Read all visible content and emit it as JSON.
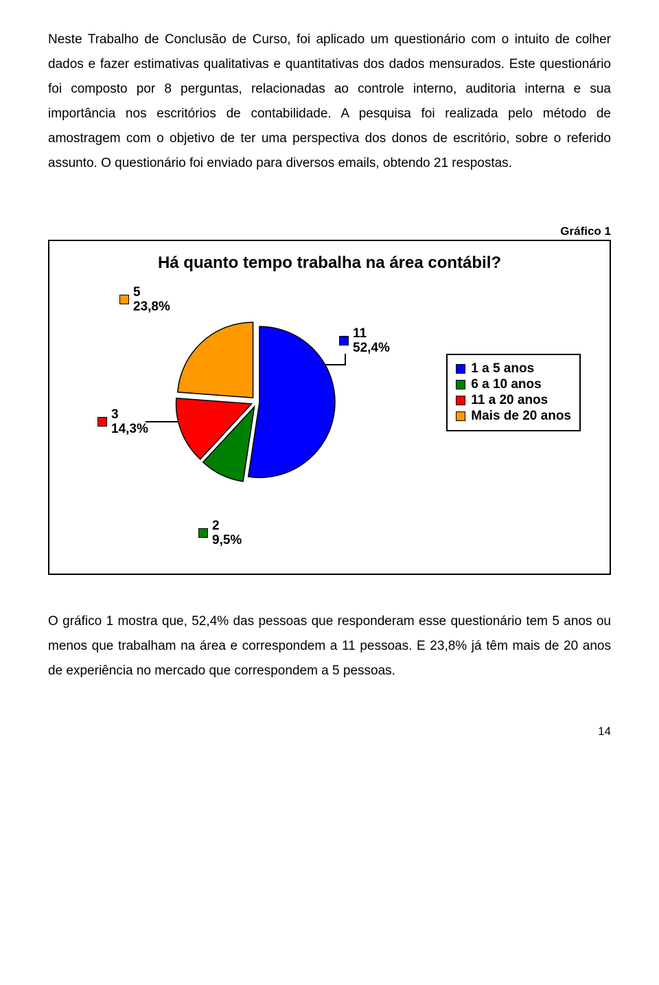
{
  "paragraph_top": "Neste Trabalho de Conclusão de Curso, foi aplicado um questionário com o intuito de colher dados e fazer estimativas qualitativas e quantitativas dos dados mensurados. Este questionário foi composto por 8 perguntas, relacionadas ao controle interno, auditoria interna e sua importância nos escritórios de contabilidade. A pesquisa foi realizada pelo método de amostragem com o objetivo de ter uma perspectiva dos donos de escritório, sobre o referido assunto. O questionário foi enviado para diversos emails, obtendo 21 respostas.",
  "chart": {
    "caption": "Gráfico 1",
    "title": "Há quanto tempo trabalha na área contábil?",
    "type": "pie",
    "background_color": "#ffffff",
    "border_color": "#000000",
    "title_fontsize": 24,
    "label_fontsize": 19,
    "slice_border_color": "#000000",
    "slice_border_width": 1.5,
    "total": 21,
    "slices": [
      {
        "id": "1-5",
        "label": "1 a 5 anos",
        "count": 11,
        "percent": "52,4%",
        "color": "#0000ff",
        "explode": 4
      },
      {
        "id": "6-10",
        "label": "6 a 10 anos",
        "count": 2,
        "percent": "9,5%",
        "color": "#008000",
        "explode": 8
      },
      {
        "id": "11-20",
        "label": "11 a 20 anos",
        "count": 3,
        "percent": "14,3%",
        "color": "#ff0000",
        "explode": 8
      },
      {
        "id": "20+",
        "label": "Mais de 20 anos",
        "count": 5,
        "percent": "23,8%",
        "color": "#ff9900",
        "explode": 8
      }
    ],
    "start_angle_deg": -90,
    "radius": 110,
    "callouts": {
      "c0": {
        "count": "11",
        "pct": "52,4%"
      },
      "c1": {
        "count": "2",
        "pct": "9,5%"
      },
      "c2": {
        "count": "3",
        "pct": "14,3%"
      },
      "c3": {
        "count": "5",
        "pct": "23,8%"
      }
    },
    "legend": {
      "items": [
        {
          "label": "1 a 5 anos",
          "color": "#0000ff"
        },
        {
          "label": "6 a 10 anos",
          "color": "#008000"
        },
        {
          "label": "11 a 20 anos",
          "color": "#ff0000"
        },
        {
          "label": "Mais de 20 anos",
          "color": "#ff9900"
        }
      ]
    }
  },
  "paragraph_bottom": "O gráfico 1 mostra que, 52,4% das pessoas que responderam esse questionário tem 5 anos ou menos que trabalham na área e correspondem a 11 pessoas. E 23,8% já têm mais de 20 anos de experiência no mercado que correspondem a 5 pessoas.",
  "page_number": "14"
}
